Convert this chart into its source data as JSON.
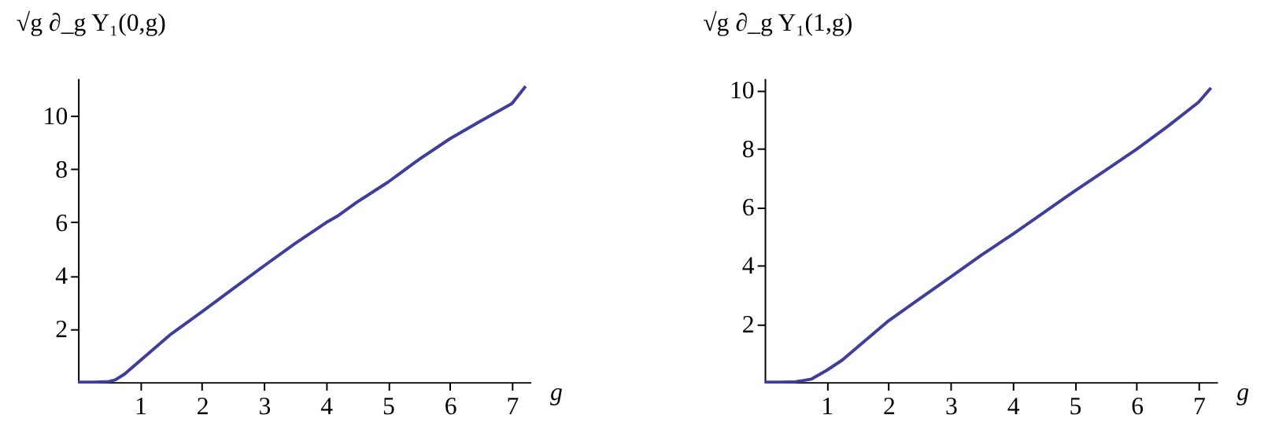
{
  "chart_data": [
    {
      "type": "line",
      "ylabel": "√g ∂_g Y₁(0,g)",
      "xlabel": "g",
      "xlim": [
        0,
        7.3
      ],
      "ylim": [
        0,
        11.4
      ],
      "xticks": [
        1,
        2,
        3,
        4,
        5,
        6,
        7
      ],
      "yticks": [
        2,
        4,
        6,
        8,
        10
      ],
      "grid": false,
      "series": [
        {
          "color": "#3f3f9a",
          "x": [
            0,
            0.25,
            0.5,
            0.6,
            0.75,
            1,
            1.25,
            1.5,
            2,
            2.5,
            3,
            3.5,
            4,
            4.2,
            4.5,
            5,
            5.5,
            6,
            6.5,
            7,
            7.22
          ],
          "values": [
            0,
            0,
            0.02,
            0.08,
            0.3,
            0.8,
            1.3,
            1.8,
            2.64,
            3.5,
            4.36,
            5.2,
            5.98,
            6.25,
            6.75,
            7.5,
            8.35,
            9.13,
            9.8,
            10.45,
            11.1
          ]
        }
      ]
    },
    {
      "type": "line",
      "ylabel": "√g ∂_g Y₁(1,g)",
      "xlabel": "g",
      "xlim": [
        0,
        7.3
      ],
      "ylim": [
        0,
        10.4
      ],
      "xticks": [
        1,
        2,
        3,
        4,
        5,
        6,
        7
      ],
      "yticks": [
        2,
        4,
        6,
        8,
        10
      ],
      "grid": false,
      "series": [
        {
          "color": "#3f3f9a",
          "x": [
            0,
            0.25,
            0.5,
            0.75,
            1,
            1.25,
            1.5,
            2,
            2.5,
            3,
            3.5,
            4,
            4.5,
            5,
            5.5,
            6,
            6.5,
            7,
            7.2
          ],
          "values": [
            0,
            0,
            0.01,
            0.1,
            0.4,
            0.75,
            1.2,
            2.1,
            2.85,
            3.6,
            4.35,
            5.06,
            5.8,
            6.54,
            7.25,
            7.97,
            8.75,
            9.58,
            10.07
          ]
        }
      ]
    }
  ]
}
